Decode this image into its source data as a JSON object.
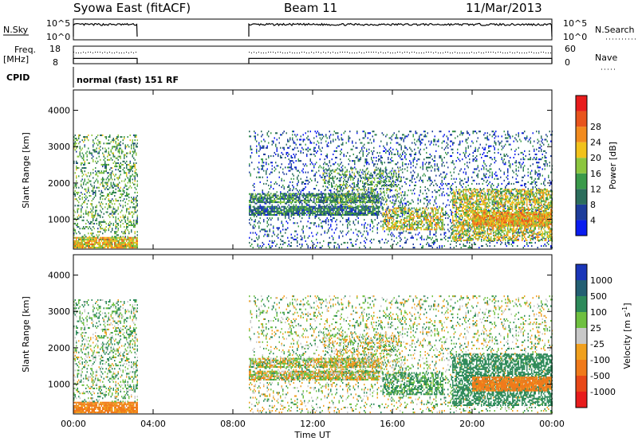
{
  "header": {
    "station": "Syowa East (fitACF)",
    "beam": "Beam 11",
    "date": "11/Mar/2013"
  },
  "control": {
    "nsky_label": "N.Sky",
    "nsearch_label": "N.Search",
    "noise_ticks_left": [
      "10^5",
      "10^0"
    ],
    "noise_ticks_right": [
      "10^5",
      "10^0"
    ],
    "freq_label_1": "Freq.",
    "freq_label_2": "[MHz]",
    "freq_ticks": [
      "18",
      "8"
    ],
    "nave_label": "Nave",
    "nave_ticks": [
      "60",
      "0"
    ],
    "cpid_label": "CPID",
    "cpid_value": "normal (fast) 151 RF"
  },
  "axes": {
    "ylabel": "Slant Range [km]",
    "xlabel": "Time UT",
    "yticks": [
      "1000",
      "2000",
      "3000",
      "4000"
    ],
    "xticks": [
      "00:00",
      "04:00",
      "08:00",
      "12:00",
      "16:00",
      "20:00",
      "00:00"
    ]
  },
  "colorbars": {
    "power": {
      "label": "Power [dB]",
      "ticks": [
        "4",
        "8",
        "12",
        "16",
        "20",
        "24",
        "28"
      ],
      "colors": [
        "#0a1cf0",
        "#1e3d9b",
        "#2c6e5c",
        "#3a9a4a",
        "#8cc63f",
        "#f2c21b",
        "#f28b1e",
        "#e8541c",
        "#e81c1c"
      ]
    },
    "velocity": {
      "label": "Velocity [m s",
      "label_sup": "-1",
      "label_end": "]",
      "ticks": [
        "1000",
        "500",
        "100",
        "25",
        "-25",
        "-100",
        "-500",
        "-1000"
      ],
      "colors": [
        "#1a36b8",
        "#235f73",
        "#2d8a5a",
        "#6fc040",
        "#c8c8c8",
        "#f0a01e",
        "#f07a1a",
        "#e84818",
        "#e81c1c"
      ]
    }
  },
  "chart_data": {
    "type": "heatmap",
    "x_range_hours": [
      0,
      24
    ],
    "y_range_km": [
      180,
      4560
    ],
    "observation_windows_hours": [
      [
        0,
        3.2
      ],
      [
        8.8,
        24
      ]
    ],
    "noise_level_log10": 3.7,
    "frequency_mhz": 11,
    "nave": 30,
    "echo_regions": [
      {
        "t0": 0.0,
        "t1": 3.2,
        "r0": 200,
        "r1": 500,
        "density": 0.9,
        "power": 22,
        "velocity": -150
      },
      {
        "t0": 0.0,
        "t1": 3.2,
        "r0": 500,
        "r1": 3300,
        "density": 0.3,
        "power": 14,
        "velocity": 80
      },
      {
        "t0": 8.8,
        "t1": 24.0,
        "r0": 200,
        "r1": 3400,
        "density": 0.18,
        "power": 8,
        "velocity": 40
      },
      {
        "t0": 8.8,
        "t1": 15.3,
        "r0": 1100,
        "r1": 1350,
        "density": 0.85,
        "power": 10,
        "velocity": 0
      },
      {
        "t0": 8.8,
        "t1": 15.3,
        "r0": 1450,
        "r1": 1700,
        "density": 0.75,
        "power": 12,
        "velocity": 5
      },
      {
        "t0": 12.5,
        "t1": 16.5,
        "r0": 1300,
        "r1": 2400,
        "density": 0.3,
        "power": 14,
        "velocity": 20
      },
      {
        "t0": 15.5,
        "t1": 18.5,
        "r0": 700,
        "r1": 1300,
        "density": 0.55,
        "power": 20,
        "velocity": 150
      },
      {
        "t0": 19.0,
        "t1": 24.0,
        "r0": 400,
        "r1": 1800,
        "density": 0.6,
        "power": 20,
        "velocity": 300
      },
      {
        "t0": 20.0,
        "t1": 24.0,
        "r0": 800,
        "r1": 1200,
        "density": 0.85,
        "power": 24,
        "velocity": -200
      }
    ]
  }
}
